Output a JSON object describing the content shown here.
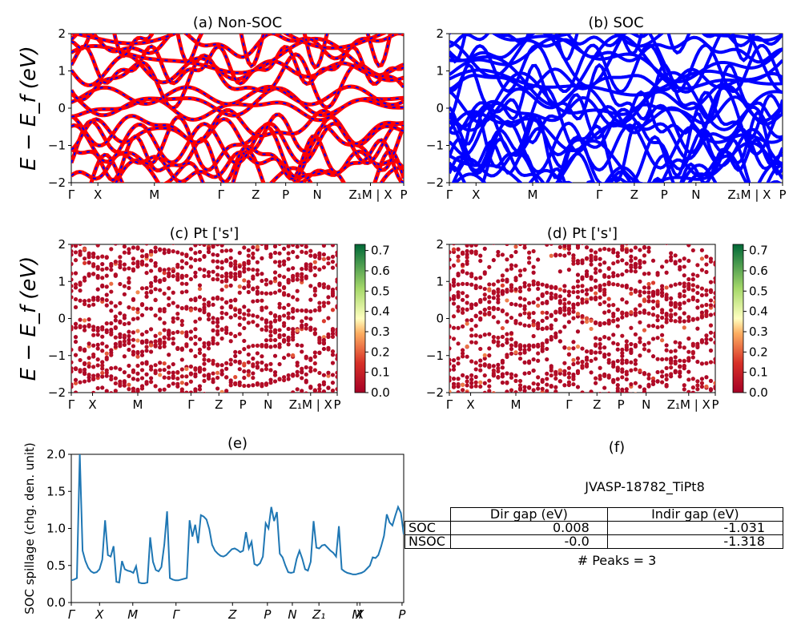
{
  "panels": {
    "a": {
      "title": "(a) Non-SOC"
    },
    "b": {
      "title": "(b) SOC"
    },
    "c": {
      "title": "(c)  Pt ['s']"
    },
    "d": {
      "title": "(d) Pt ['s']"
    },
    "e": {
      "title": "(e)"
    },
    "f": {
      "title": "(f)"
    }
  },
  "band_ylabel": "E − E_f (eV)",
  "colorbar": {
    "ticks": [
      "0.0",
      "0.1",
      "0.2",
      "0.3",
      "0.4",
      "0.5",
      "0.6",
      "0.7"
    ],
    "range": [
      0,
      0.73
    ],
    "cmap": "RdYlGn"
  },
  "colors": {
    "nonsoc_main": "#ff0000",
    "nonsoc_dash": "#0000ff",
    "soc": "#0000ff",
    "spillage": "#1f77b4"
  },
  "chart_data": [
    {
      "id": "a",
      "type": "line",
      "title": "(a) Non-SOC",
      "ylabel": "E − E_f (eV)",
      "ylim": [
        -2,
        2
      ],
      "yticks": [
        "−2",
        "−1",
        "0",
        "1",
        "2"
      ],
      "xticks": [
        "Γ",
        "X",
        "M",
        "Γ",
        "Z",
        "P",
        "N",
        "Z₁M | X",
        "P"
      ],
      "band_count_visible": 18
    },
    {
      "id": "b",
      "type": "line",
      "title": "(b) SOC",
      "ylim": [
        -2,
        2
      ],
      "yticks": [
        "−2",
        "−1",
        "0",
        "1",
        "2"
      ],
      "xticks": [
        "Γ",
        "X",
        "M",
        "Γ",
        "Z",
        "P",
        "N",
        "Z₁M | X",
        "P"
      ]
    },
    {
      "id": "c",
      "type": "scatter",
      "title": "(c)  Pt ['s']",
      "ylabel": "E − E_f (eV)",
      "ylim": [
        -2,
        2
      ],
      "yticks": [
        "−2",
        "−1",
        "0",
        "1",
        "2"
      ],
      "xticks": [
        "Γ",
        "X",
        "M",
        "Γ",
        "Z",
        "P",
        "N",
        "Z₁M | X",
        "P"
      ],
      "color_range": [
        0,
        0.73
      ]
    },
    {
      "id": "d",
      "type": "scatter",
      "title": "(d) Pt ['s']",
      "ylim": [
        -2,
        2
      ],
      "yticks": [
        "−2",
        "−1",
        "0",
        "1",
        "2"
      ],
      "xticks": [
        "Γ",
        "X",
        "M",
        "Γ",
        "Z",
        "P",
        "N",
        "Z₁M | X",
        "P"
      ],
      "color_range": [
        0,
        0.73
      ]
    },
    {
      "id": "e",
      "type": "line",
      "title": "(e)",
      "ylabel": "SOC spillage (chg. den. unit)",
      "ylim": [
        0,
        2
      ],
      "yticks": [
        "0.0",
        "0.5",
        "1.0",
        "1.5",
        "2.0"
      ],
      "xticks": [
        "Γ",
        "X",
        "M",
        "Γ",
        "Z",
        "P",
        "N",
        "Z₁",
        "M",
        "X",
        "P"
      ],
      "series": [
        {
          "values": [
            0.3,
            0.31,
            0.33,
            2.0,
            0.7,
            0.56,
            0.47,
            0.42,
            0.4,
            0.41,
            0.45,
            0.58,
            1.11,
            0.64,
            0.62,
            0.76,
            0.28,
            0.27,
            0.56,
            0.45,
            0.43,
            0.42,
            0.4,
            0.49,
            0.27,
            0.26,
            0.26,
            0.27,
            0.88,
            0.55,
            0.44,
            0.42,
            0.48,
            0.78,
            1.23,
            0.33,
            0.31,
            0.3,
            0.3,
            0.31,
            0.32,
            0.33,
            1.11,
            0.89,
            1.05,
            0.8,
            1.18,
            1.16,
            1.12,
            0.99,
            0.78,
            0.7,
            0.66,
            0.63,
            0.62,
            0.64,
            0.68,
            0.72,
            0.73,
            0.71,
            0.68,
            0.7,
            0.95,
            0.73,
            0.82,
            0.52,
            0.5,
            0.53,
            0.62,
            1.07,
            1.0,
            1.29,
            1.1,
            1.22,
            0.66,
            0.61,
            0.5,
            0.41,
            0.4,
            0.41,
            0.59,
            0.7,
            0.59,
            0.45,
            0.43,
            0.55,
            1.1,
            0.74,
            0.73,
            0.77,
            0.78,
            0.74,
            0.7,
            0.67,
            0.62,
            1.03,
            0.45,
            0.42,
            0.4,
            0.39,
            0.38,
            0.38,
            0.39,
            0.4,
            0.42,
            0.46,
            0.5,
            0.61,
            0.6,
            0.64,
            0.76,
            0.9,
            1.19,
            1.08,
            1.04,
            1.17,
            1.29,
            1.21,
            0.92
          ]
        }
      ]
    },
    {
      "id": "f",
      "type": "table",
      "title": "(f)",
      "caption": "JVASP-18782_TiPt8",
      "columns": [
        "Dir gap (eV)",
        "Indir gap (eV)"
      ],
      "rows": [
        {
          "label": "SOC",
          "dir": "0.008",
          "indir": "-1.031"
        },
        {
          "label": "NSOC",
          "dir": "-0.0",
          "indir": "-1.318"
        }
      ],
      "footer": "# Peaks = 3"
    }
  ]
}
